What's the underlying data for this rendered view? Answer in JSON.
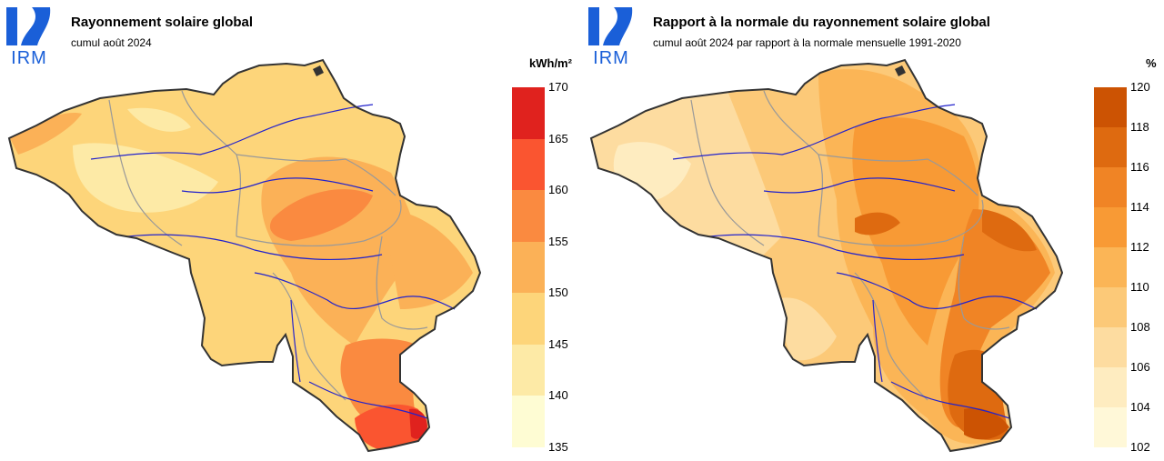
{
  "left_panel": {
    "logo_text": "IRM",
    "title": "Rayonnement solaire global",
    "subtitle": "cumul août 2024",
    "unit": "kWh/m²",
    "legend": {
      "ticks": [
        "170",
        "165",
        "160",
        "155",
        "150",
        "145",
        "140",
        "135"
      ],
      "colors": [
        "#e0221e",
        "#fa5530",
        "#fa8a40",
        "#fbb157",
        "#fdd57a",
        "#fdeaa6",
        "#fefcd3"
      ]
    }
  },
  "right_panel": {
    "logo_text": "IRM",
    "title": "Rapport à la normale du rayonnement solaire global",
    "subtitle": "cumul août 2024 par rapport à la normale mensuelle 1991-2020",
    "unit": "%",
    "legend": {
      "ticks": [
        "120",
        "118",
        "116",
        "114",
        "112",
        "110",
        "108",
        "106",
        "104",
        "102"
      ],
      "colors": [
        "#cc5303",
        "#de6a10",
        "#f08425",
        "#f89a35",
        "#fbb556",
        "#fcc978",
        "#fddca0",
        "#feecc0",
        "#fff8d8"
      ]
    }
  }
}
